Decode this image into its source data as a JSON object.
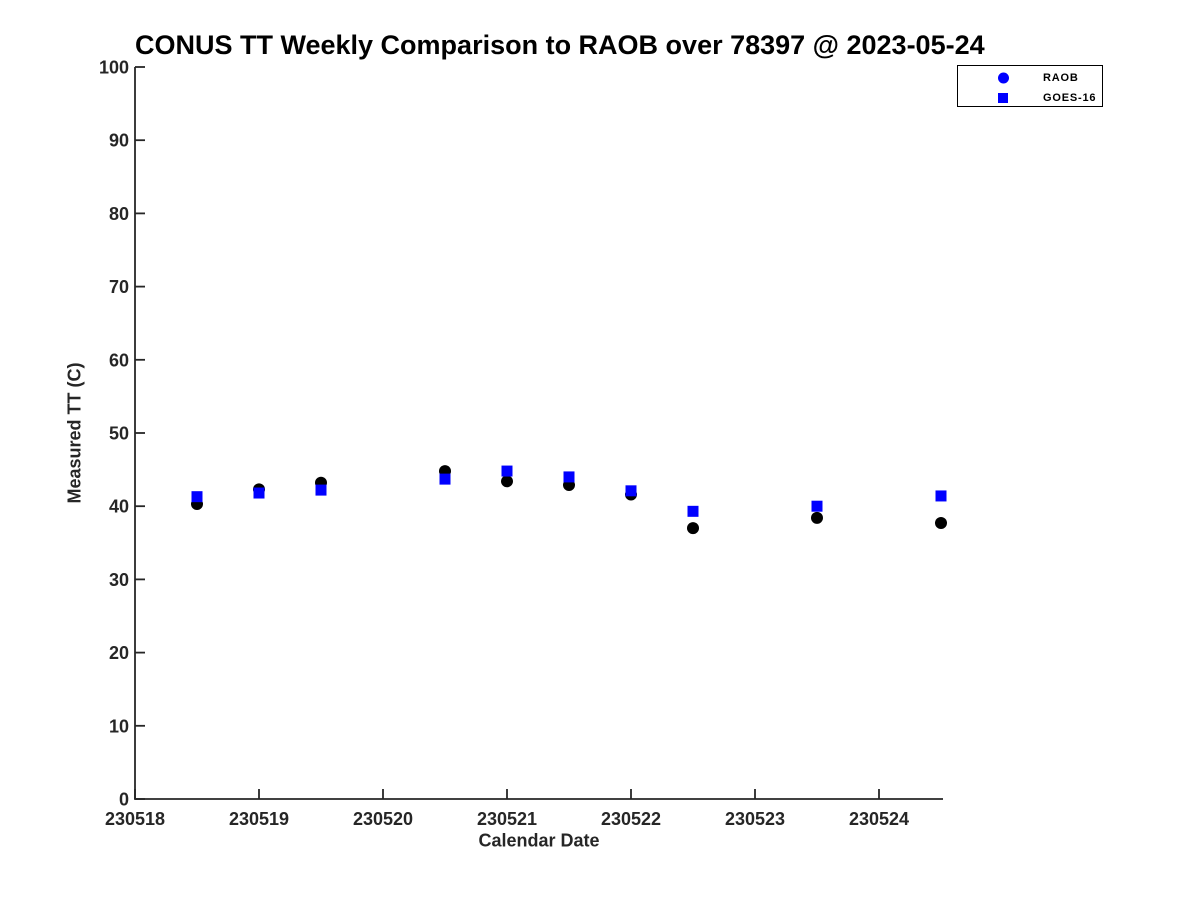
{
  "chart_data": {
    "type": "scatter",
    "title": "CONUS TT Weekly Comparison to RAOB over 78397 @ 2023-05-24",
    "xlabel": "Calendar Date",
    "ylabel": "Measured TT (C)",
    "xlim": [
      230518,
      230524.52
    ],
    "ylim": [
      0,
      100
    ],
    "x_ticks": [
      "230518",
      "230519",
      "230520",
      "230521",
      "230522",
      "230523",
      "230524"
    ],
    "y_ticks": [
      0,
      10,
      20,
      30,
      40,
      50,
      60,
      70,
      80,
      90,
      100
    ],
    "grid": false,
    "axis_color": "#262626",
    "title_color": "#000000",
    "accent_blue": "#0000FF",
    "legend_position": "top-right",
    "legend": [
      {
        "label": "RAOB",
        "marker": "circle",
        "color": "#0000FF"
      },
      {
        "label": "GOES-16",
        "marker": "square",
        "color": "#0000FF"
      }
    ],
    "series": [
      {
        "name": "RAOB",
        "marker": "circle",
        "color": "#000000",
        "points": [
          [
            230518.5,
            40.3
          ],
          [
            230519.0,
            42.3
          ],
          [
            230519.5,
            43.2
          ],
          [
            230520.5,
            44.8
          ],
          [
            230521.0,
            43.4
          ],
          [
            230521.5,
            42.9
          ],
          [
            230522.0,
            41.6
          ],
          [
            230522.5,
            37.0
          ],
          [
            230523.5,
            38.4
          ],
          [
            230524.5,
            37.7
          ]
        ]
      },
      {
        "name": "GOES-16",
        "marker": "square",
        "color": "#0000FF",
        "points": [
          [
            230518.5,
            41.3
          ],
          [
            230519.0,
            41.8
          ],
          [
            230519.5,
            42.2
          ],
          [
            230520.5,
            43.7
          ],
          [
            230521.0,
            44.8
          ],
          [
            230521.5,
            44.0
          ],
          [
            230522.0,
            42.1
          ],
          [
            230522.5,
            39.3
          ],
          [
            230523.5,
            40.0
          ],
          [
            230524.5,
            41.4
          ]
        ]
      }
    ]
  }
}
